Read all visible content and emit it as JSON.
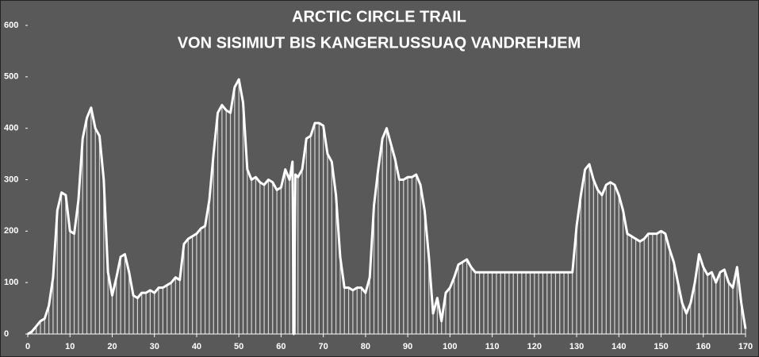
{
  "chart_data": {
    "type": "area",
    "title": "ARCTIC CIRCLE TRAIL",
    "subtitle": "VON SISIMIUT BIS KANGERLUSSUAQ VANDREHJEM",
    "color": "#ffffff",
    "x": [
      0,
      1,
      2,
      3,
      4,
      5,
      6,
      7,
      8,
      9,
      10,
      11,
      12,
      13,
      14,
      15,
      16,
      17,
      18,
      19,
      20,
      21,
      22,
      23,
      24,
      25,
      26,
      27,
      28,
      29,
      30,
      31,
      32,
      33,
      34,
      35,
      36,
      37,
      38,
      39,
      40,
      41,
      42,
      43,
      44,
      45,
      46,
      47,
      48,
      49,
      50,
      51,
      52,
      53,
      54,
      55,
      56,
      57,
      58,
      59,
      60,
      61,
      62,
      62.7,
      63,
      63.4,
      64,
      65,
      66,
      67,
      68,
      69,
      70,
      71,
      72,
      73,
      74,
      75,
      76,
      77,
      78,
      79,
      80,
      81,
      82,
      83,
      84,
      85,
      86,
      87,
      88,
      89,
      90,
      91,
      92,
      93,
      94,
      95,
      96,
      97,
      98,
      99,
      100,
      101,
      102,
      103,
      104,
      105,
      106,
      107,
      108,
      109,
      110,
      111,
      112,
      113,
      114,
      115,
      116,
      117,
      118,
      119,
      120,
      121,
      122,
      123,
      124,
      125,
      126,
      127,
      128,
      129,
      130,
      131,
      132,
      133,
      134,
      135,
      136,
      137,
      138,
      139,
      140,
      141,
      142,
      143,
      144,
      145,
      146,
      147,
      148,
      149,
      150,
      151,
      152,
      153,
      154,
      155,
      156,
      157,
      158,
      159,
      160,
      161,
      162,
      163,
      164,
      165,
      166,
      167,
      168,
      169,
      170
    ],
    "values": [
      0,
      5,
      15,
      25,
      30,
      55,
      110,
      240,
      275,
      270,
      200,
      195,
      260,
      380,
      420,
      440,
      400,
      385,
      300,
      120,
      75,
      110,
      150,
      155,
      120,
      75,
      70,
      80,
      80,
      85,
      80,
      90,
      90,
      95,
      100,
      110,
      105,
      175,
      185,
      190,
      195,
      205,
      210,
      260,
      350,
      430,
      445,
      435,
      430,
      480,
      495,
      450,
      320,
      300,
      305,
      295,
      290,
      300,
      295,
      280,
      285,
      320,
      300,
      335,
      0,
      310,
      305,
      320,
      380,
      385,
      410,
      410,
      405,
      350,
      335,
      270,
      150,
      90,
      90,
      85,
      90,
      90,
      80,
      110,
      250,
      320,
      380,
      400,
      370,
      340,
      300,
      300,
      305,
      305,
      310,
      290,
      240,
      150,
      40,
      70,
      25,
      80,
      90,
      110,
      135,
      140,
      145,
      130,
      120,
      120,
      120,
      120,
      120,
      120,
      120,
      120,
      120,
      120,
      120,
      120,
      120,
      120,
      120,
      120,
      120,
      120,
      120,
      120,
      120,
      120,
      120,
      120,
      210,
      270,
      320,
      330,
      300,
      280,
      270,
      290,
      295,
      290,
      270,
      240,
      195,
      190,
      185,
      180,
      185,
      195,
      195,
      195,
      200,
      195,
      165,
      140,
      100,
      60,
      40,
      60,
      100,
      155,
      130,
      115,
      120,
      100,
      120,
      125,
      100,
      90,
      130,
      60,
      10
    ],
    "xlim": [
      0,
      170
    ],
    "xticks": [
      0,
      10,
      20,
      30,
      40,
      50,
      60,
      70,
      80,
      90,
      100,
      110,
      120,
      130,
      140,
      150,
      160,
      170
    ],
    "ylim": [
      0,
      600
    ],
    "yticks": [
      0,
      100,
      200,
      300,
      400,
      500,
      600
    ]
  }
}
